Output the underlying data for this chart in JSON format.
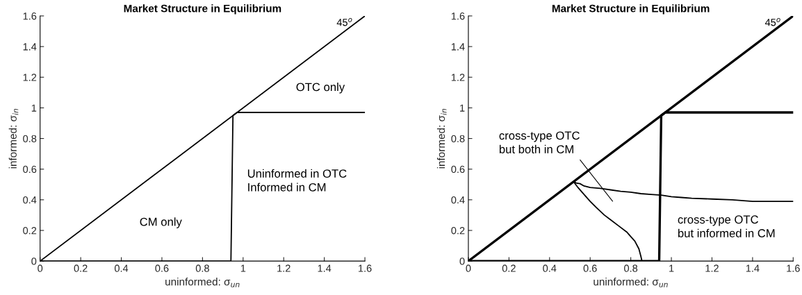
{
  "chart_data": [
    {
      "type": "line",
      "title": "Market Structure in Equilibrium",
      "xlabel": "uninformed: σ$_{un}$",
      "ylabel": "informed: σ$_{in}$",
      "xlim": [
        0,
        1.6
      ],
      "ylim": [
        0,
        1.6
      ],
      "xticks": [
        0,
        0.2,
        0.4,
        0.6,
        0.8,
        1,
        1.2,
        1.4,
        1.6
      ],
      "yticks": [
        0,
        0.2,
        0.4,
        0.6,
        0.8,
        1,
        1.2,
        1.4,
        1.6
      ],
      "grid": false,
      "legend": false,
      "marker": "none",
      "line_style": "solid",
      "series": [
        {
          "color": "#000000",
          "x": [
            0,
            1.6
          ],
          "values": [
            0,
            1.6
          ]
        },
        {
          "color": "#000000",
          "x": [
            0,
            0.94,
            0.95,
            0.97,
            1.6
          ],
          "values": [
            0,
            0,
            0.95,
            0.97,
            0.97
          ]
        }
      ],
      "annotations": [
        "45$^{o}$",
        "OTC only",
        "Uninformed in OTC\nInformed in CM",
        "CM only"
      ]
    },
    {
      "type": "line",
      "title": "Market Structure in Equilibrium",
      "xlabel": "uninformed: σ$_{un}$",
      "ylabel": "informed: σ$_{in}$",
      "xlim": [
        0,
        1.6
      ],
      "ylim": [
        0,
        1.6
      ],
      "xticks": [
        0,
        0.2,
        0.4,
        0.6,
        0.8,
        1,
        1.2,
        1.4,
        1.6
      ],
      "yticks": [
        0,
        0.2,
        0.4,
        0.6,
        0.8,
        1,
        1.2,
        1.4,
        1.6
      ],
      "grid": false,
      "legend": false,
      "marker": "none",
      "line_style": "solid",
      "series": [
        {
          "color": "#000000",
          "x": [
            0,
            1.6
          ],
          "values": [
            0,
            1.6
          ]
        },
        {
          "color": "#000000",
          "x": [
            0,
            0.94,
            0.95,
            0.97,
            1.6
          ],
          "values": [
            0,
            0,
            0.95,
            0.97,
            0.97
          ]
        },
        {
          "color": "#000000",
          "x": [
            0.52,
            0.53,
            0.55,
            0.57,
            0.6,
            0.65,
            0.7,
            0.75,
            0.8,
            0.85,
            0.9,
            0.95,
            1.0,
            1.05,
            1.1,
            1.2,
            1.3,
            1.4,
            1.6
          ],
          "values": [
            0.52,
            0.51,
            0.505,
            0.49,
            0.48,
            0.475,
            0.465,
            0.455,
            0.45,
            0.44,
            0.435,
            0.43,
            0.42,
            0.415,
            0.41,
            0.405,
            0.4,
            0.39,
            0.39
          ]
        },
        {
          "color": "#000000",
          "x": [
            0.52,
            0.54,
            0.56,
            0.6,
            0.63,
            0.67,
            0.7,
            0.74,
            0.78,
            0.8,
            0.82,
            0.84,
            0.85,
            0.855
          ],
          "values": [
            0.515,
            0.48,
            0.45,
            0.39,
            0.35,
            0.3,
            0.27,
            0.23,
            0.19,
            0.16,
            0.13,
            0.08,
            0.03,
            0
          ]
        }
      ],
      "annotations": [
        "45$^{o}$",
        "cross-type OTC\nbut both in CM",
        "cross-type OTC\nbut informed in CM"
      ]
    }
  ]
}
